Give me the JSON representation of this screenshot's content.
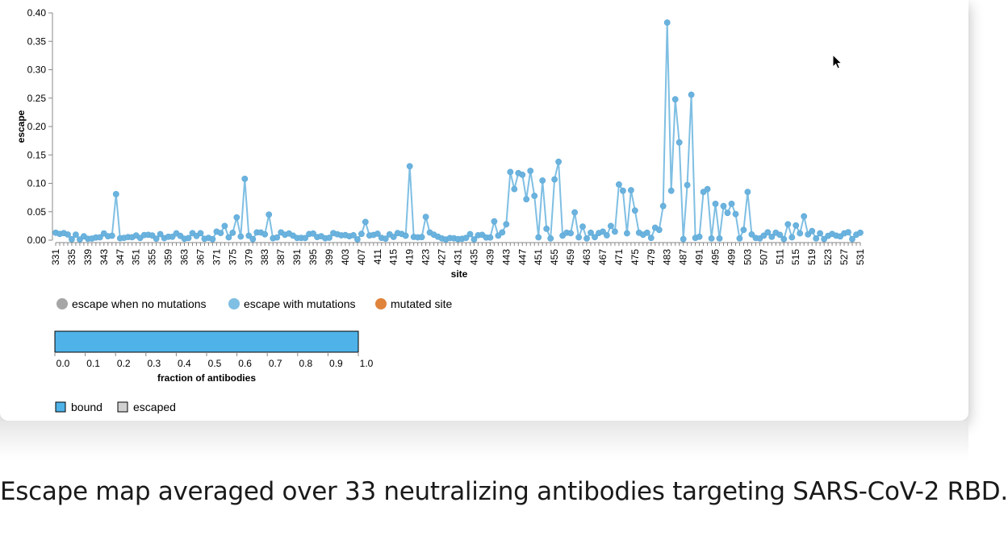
{
  "caption": "Escape map averaged over 33 neutralizing antibodies targeting SARS-CoV-2 RBD.",
  "chart_data": {
    "type": "line",
    "xlabel": "site",
    "ylabel": "escape",
    "ylim": [
      0,
      0.4
    ],
    "yticks": [
      "0.00",
      "0.05",
      "0.10",
      "0.15",
      "0.20",
      "0.25",
      "0.30",
      "0.35",
      "0.40"
    ],
    "x_range": [
      331,
      531
    ],
    "x_tick_step": 4,
    "series_color": "#7fbfe3",
    "point_fill": "#6bb3de",
    "peaks": [
      [
        331,
        0.013
      ],
      [
        346,
        0.081
      ],
      [
        371,
        0.015
      ],
      [
        373,
        0.025
      ],
      [
        376,
        0.04
      ],
      [
        378,
        0.108
      ],
      [
        384,
        0.045
      ],
      [
        408,
        0.032
      ],
      [
        419,
        0.13
      ],
      [
        421,
        0.005
      ],
      [
        423,
        0.041
      ],
      [
        440,
        0.033
      ],
      [
        441,
        0.008
      ],
      [
        443,
        0.028
      ],
      [
        444,
        0.12
      ],
      [
        445,
        0.09
      ],
      [
        446,
        0.118
      ],
      [
        447,
        0.115
      ],
      [
        448,
        0.072
      ],
      [
        449,
        0.122
      ],
      [
        450,
        0.078
      ],
      [
        451,
        0.005
      ],
      [
        452,
        0.105
      ],
      [
        453,
        0.02
      ],
      [
        454,
        0.003
      ],
      [
        455,
        0.107
      ],
      [
        456,
        0.138
      ],
      [
        457,
        0.008
      ],
      [
        458,
        0.013
      ],
      [
        460,
        0.049
      ],
      [
        461,
        0.005
      ],
      [
        462,
        0.024
      ],
      [
        463,
        0.003
      ],
      [
        467,
        0.015
      ],
      [
        469,
        0.025
      ],
      [
        470,
        0.015
      ],
      [
        471,
        0.098
      ],
      [
        472,
        0.087
      ],
      [
        473,
        0.012
      ],
      [
        474,
        0.088
      ],
      [
        475,
        0.052
      ],
      [
        476,
        0.013
      ],
      [
        478,
        0.013
      ],
      [
        479,
        0.004
      ],
      [
        480,
        0.022
      ],
      [
        481,
        0.018
      ],
      [
        482,
        0.06
      ],
      [
        483,
        0.383
      ],
      [
        484,
        0.087
      ],
      [
        485,
        0.248
      ],
      [
        486,
        0.172
      ],
      [
        487,
        0.002
      ],
      [
        488,
        0.097
      ],
      [
        489,
        0.256
      ],
      [
        490,
        0.004
      ],
      [
        491,
        0.006
      ],
      [
        492,
        0.085
      ],
      [
        493,
        0.09
      ],
      [
        494,
        0.003
      ],
      [
        495,
        0.064
      ],
      [
        496,
        0.003
      ],
      [
        497,
        0.06
      ],
      [
        498,
        0.048
      ],
      [
        499,
        0.064
      ],
      [
        500,
        0.046
      ],
      [
        501,
        0.003
      ],
      [
        502,
        0.018
      ],
      [
        503,
        0.085
      ],
      [
        504,
        0.01
      ],
      [
        506,
        0.003
      ],
      [
        507,
        0.008
      ],
      [
        512,
        0.002
      ],
      [
        513,
        0.028
      ],
      [
        514,
        0.005
      ],
      [
        515,
        0.026
      ],
      [
        516,
        0.012
      ],
      [
        517,
        0.042
      ],
      [
        518,
        0.01
      ],
      [
        519,
        0.016
      ],
      [
        520,
        0.003
      ],
      [
        521,
        0.012
      ],
      [
        522,
        0.002
      ],
      [
        525,
        0.008
      ],
      [
        527,
        0.012
      ],
      [
        528,
        0.014
      ],
      [
        531,
        0.013
      ]
    ]
  },
  "legend": {
    "items": [
      {
        "label": "escape when no mutations",
        "color": "#a6a6a6"
      },
      {
        "label": "escape with mutations",
        "color": "#7fbfe3"
      },
      {
        "label": "mutated site",
        "color": "#e0843c"
      }
    ]
  },
  "antibody_bar": {
    "title": "fraction of antibodies",
    "bound_fraction": 1.0,
    "ticks": [
      "0.0",
      "0.1",
      "0.2",
      "0.3",
      "0.4",
      "0.5",
      "0.6",
      "0.7",
      "0.8",
      "0.9",
      "1.0"
    ],
    "bound_color": "#4fb2e8",
    "escaped_color": "#d0d0d0",
    "legend": [
      {
        "label": "bound",
        "color": "#4fb2e8"
      },
      {
        "label": "escaped",
        "color": "#d0d0d0"
      }
    ]
  }
}
